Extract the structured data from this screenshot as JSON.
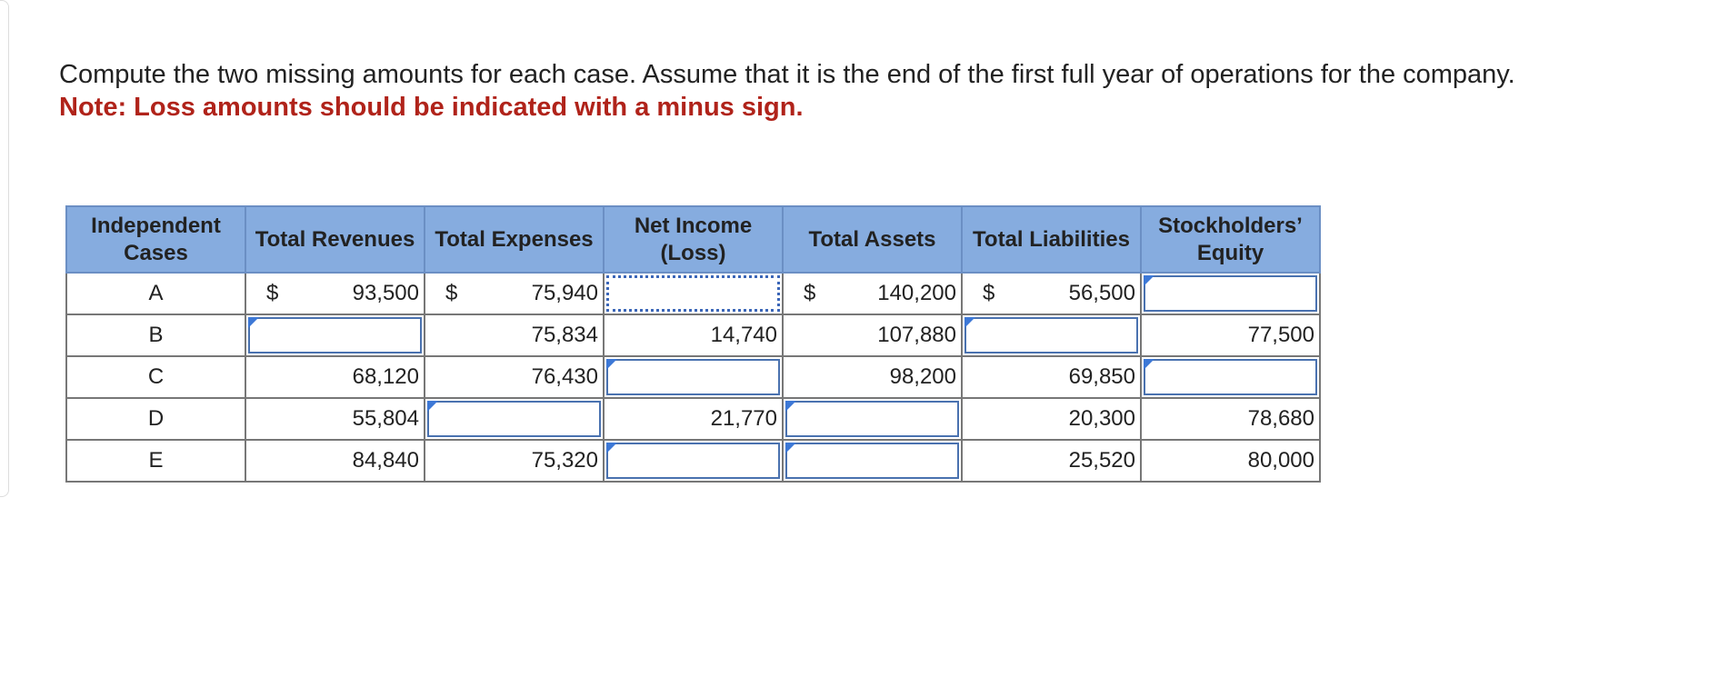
{
  "instructions": {
    "text": "Compute the two missing amounts for each case. Assume that it is the end of the first full year of operations for the company.",
    "note": "Note: Loss amounts should be indicated with a minus sign."
  },
  "table": {
    "header": [
      "Independent Cases",
      "Total Revenues",
      "Total Expenses",
      "Net Income (Loss)",
      "Total Assets",
      "Total Liabilities",
      "Stockholders’ Equity"
    ],
    "rows": [
      [
        "A",
        {
          "symbol": "$",
          "amount": "93,500"
        },
        {
          "symbol": "$",
          "amount": "75,940"
        },
        null,
        {
          "symbol": "$",
          "amount": "140,200"
        },
        {
          "symbol": "$",
          "amount": "56,500"
        },
        null
      ],
      [
        "B",
        null,
        "75,834",
        "14,740",
        "107,880",
        null,
        "77,500"
      ],
      [
        "C",
        "68,120",
        "76,430",
        null,
        "98,200",
        "69,850",
        null
      ],
      [
        "D",
        "55,804",
        null,
        "21,770",
        null,
        "20,300",
        "78,680"
      ],
      [
        "E",
        "84,840",
        "75,320",
        null,
        null,
        "25,520",
        "80,000"
      ]
    ]
  }
}
